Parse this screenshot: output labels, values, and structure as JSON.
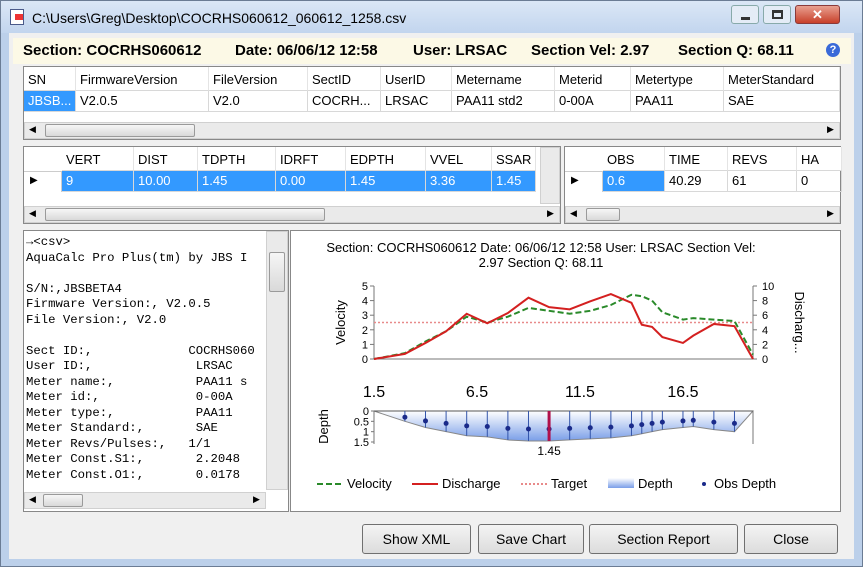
{
  "window": {
    "title": "C:\\Users\\Greg\\Desktop\\COCRHS060612_060612_1258.csv"
  },
  "header": [
    {
      "label": "Section:",
      "value": "COCRHS060612"
    },
    {
      "label": "Date:",
      "value": "06/06/12 12:58"
    },
    {
      "label": "User:",
      "value": "LRSAC"
    },
    {
      "label": "Section Vel:",
      "value": 2.97
    },
    {
      "label": "Section Q:",
      "value": 68.11
    }
  ],
  "meter_table": {
    "columns": [
      "SN",
      "FirmwareVersion",
      "FileVersion",
      "SectID",
      "UserID",
      "Metername",
      "Meterid",
      "Metertype",
      "MeterStandard"
    ],
    "rows": [
      [
        "JBSB...",
        "V2.0.5",
        "V2.0",
        "COCRH...",
        "LRSAC",
        "PAA11 std2",
        "0-00A",
        "PAA11",
        "SAE"
      ]
    ]
  },
  "vertical_table": {
    "columns": [
      "VERT",
      "DIST",
      "TDPTH",
      "IDRFT",
      "EDPTH",
      "VVEL",
      "SSAR"
    ],
    "rows": [
      [
        "9",
        "10.00",
        "1.45",
        "0.00",
        "1.45",
        "3.36",
        "1.45"
      ]
    ]
  },
  "obs_table": {
    "columns": [
      "OBS",
      "TIME",
      "REVS",
      "HA"
    ],
    "rows": [
      [
        "0.6",
        "40.29",
        "61",
        "0"
      ]
    ]
  },
  "csv_text": [
    [
      "→<csv>",
      "AquaCalc Pro Plus(tm) by JBS I"
    ],
    [
      "S/N:,JBSBETA4",
      "Firmware Version:, V2.0.5",
      "File Version:, V2.0"
    ],
    [
      "Sect ID:,             COCRHS060",
      "User ID:,              LRSAC",
      "Meter name:,           PAA11 s",
      "Meter id:,             0-00A",
      "Meter type:,           PAA11",
      "Meter Standard:,       SAE",
      "Meter Revs/Pulses:,   1/1",
      "Meter Const.S1:,       2.2048",
      "Meter Const.O1:,       0.0178"
    ]
  ],
  "chart_data": {
    "type": "line",
    "title": [
      "Section: COCRHS060612   Date: 06/06/12 12:58   User: LRSAC   Section Vel:",
      "2.97   Section Q: 68.11"
    ],
    "x": [
      1.5,
      3,
      4,
      5,
      6,
      7,
      8,
      9,
      10,
      11,
      12,
      13,
      14,
      14.5,
      15,
      15.5,
      16.5,
      17,
      18,
      19,
      19.9
    ],
    "xlim": [
      1.5,
      19.9
    ],
    "xticks": [
      1.5,
      6.5,
      11.5,
      16.5
    ],
    "series": [
      {
        "name": "Velocity",
        "color": "#2a8a2a",
        "axis": "y",
        "values": [
          0,
          0.4,
          1.2,
          1.9,
          2.9,
          2.5,
          2.9,
          3.5,
          3.3,
          3.1,
          3.3,
          3.7,
          4.4,
          4.3,
          4.0,
          3.2,
          2.7,
          2.8,
          2.7,
          2.6,
          0.3
        ]
      },
      {
        "name": "Discharge",
        "color": "#d42020",
        "axis": "y2",
        "values": [
          0,
          0.7,
          2.2,
          3.8,
          6.2,
          4.9,
          6.3,
          8.4,
          7.1,
          6.8,
          7.9,
          8.9,
          7.7,
          4.7,
          4.4,
          3.0,
          2.2,
          3.2,
          4.8,
          4.5,
          0
        ]
      }
    ],
    "target": {
      "name": "Target",
      "value": 2.5,
      "color": "#e88a8a"
    },
    "ylabel": "Velocity",
    "ylim": [
      0,
      5
    ],
    "yticks": [
      0,
      1,
      2,
      3,
      4,
      5
    ],
    "y2label": "Discharg...",
    "y2lim": [
      0,
      10
    ],
    "y2ticks": [
      0,
      2,
      4,
      6,
      8,
      10
    ],
    "depth": {
      "name": "Depth",
      "ylabel": "Depth",
      "color": "#7a9ee8",
      "ylim": [
        0,
        1.5
      ],
      "yticks": [
        0,
        0.5,
        1,
        1.5
      ],
      "values": [
        0,
        0.5,
        0.8,
        1.0,
        1.2,
        1.25,
        1.4,
        1.45,
        1.45,
        1.4,
        1.35,
        1.3,
        1.2,
        1.1,
        1.0,
        0.9,
        0.8,
        0.75,
        0.9,
        1.0,
        0
      ]
    },
    "obs_depth": {
      "name": "Obs Depth",
      "color": "#1a2a8a",
      "values": [
        null,
        0.3,
        0.48,
        0.6,
        0.72,
        0.75,
        0.84,
        0.87,
        0.87,
        0.84,
        0.81,
        0.78,
        0.72,
        0.66,
        0.6,
        0.54,
        0.48,
        0.45,
        0.54,
        0.6,
        null
      ]
    },
    "selected": {
      "x": 10,
      "depth": 1.45
    }
  },
  "buttons": [
    "Show XML",
    "Save Chart",
    "Section Report",
    "Close"
  ]
}
